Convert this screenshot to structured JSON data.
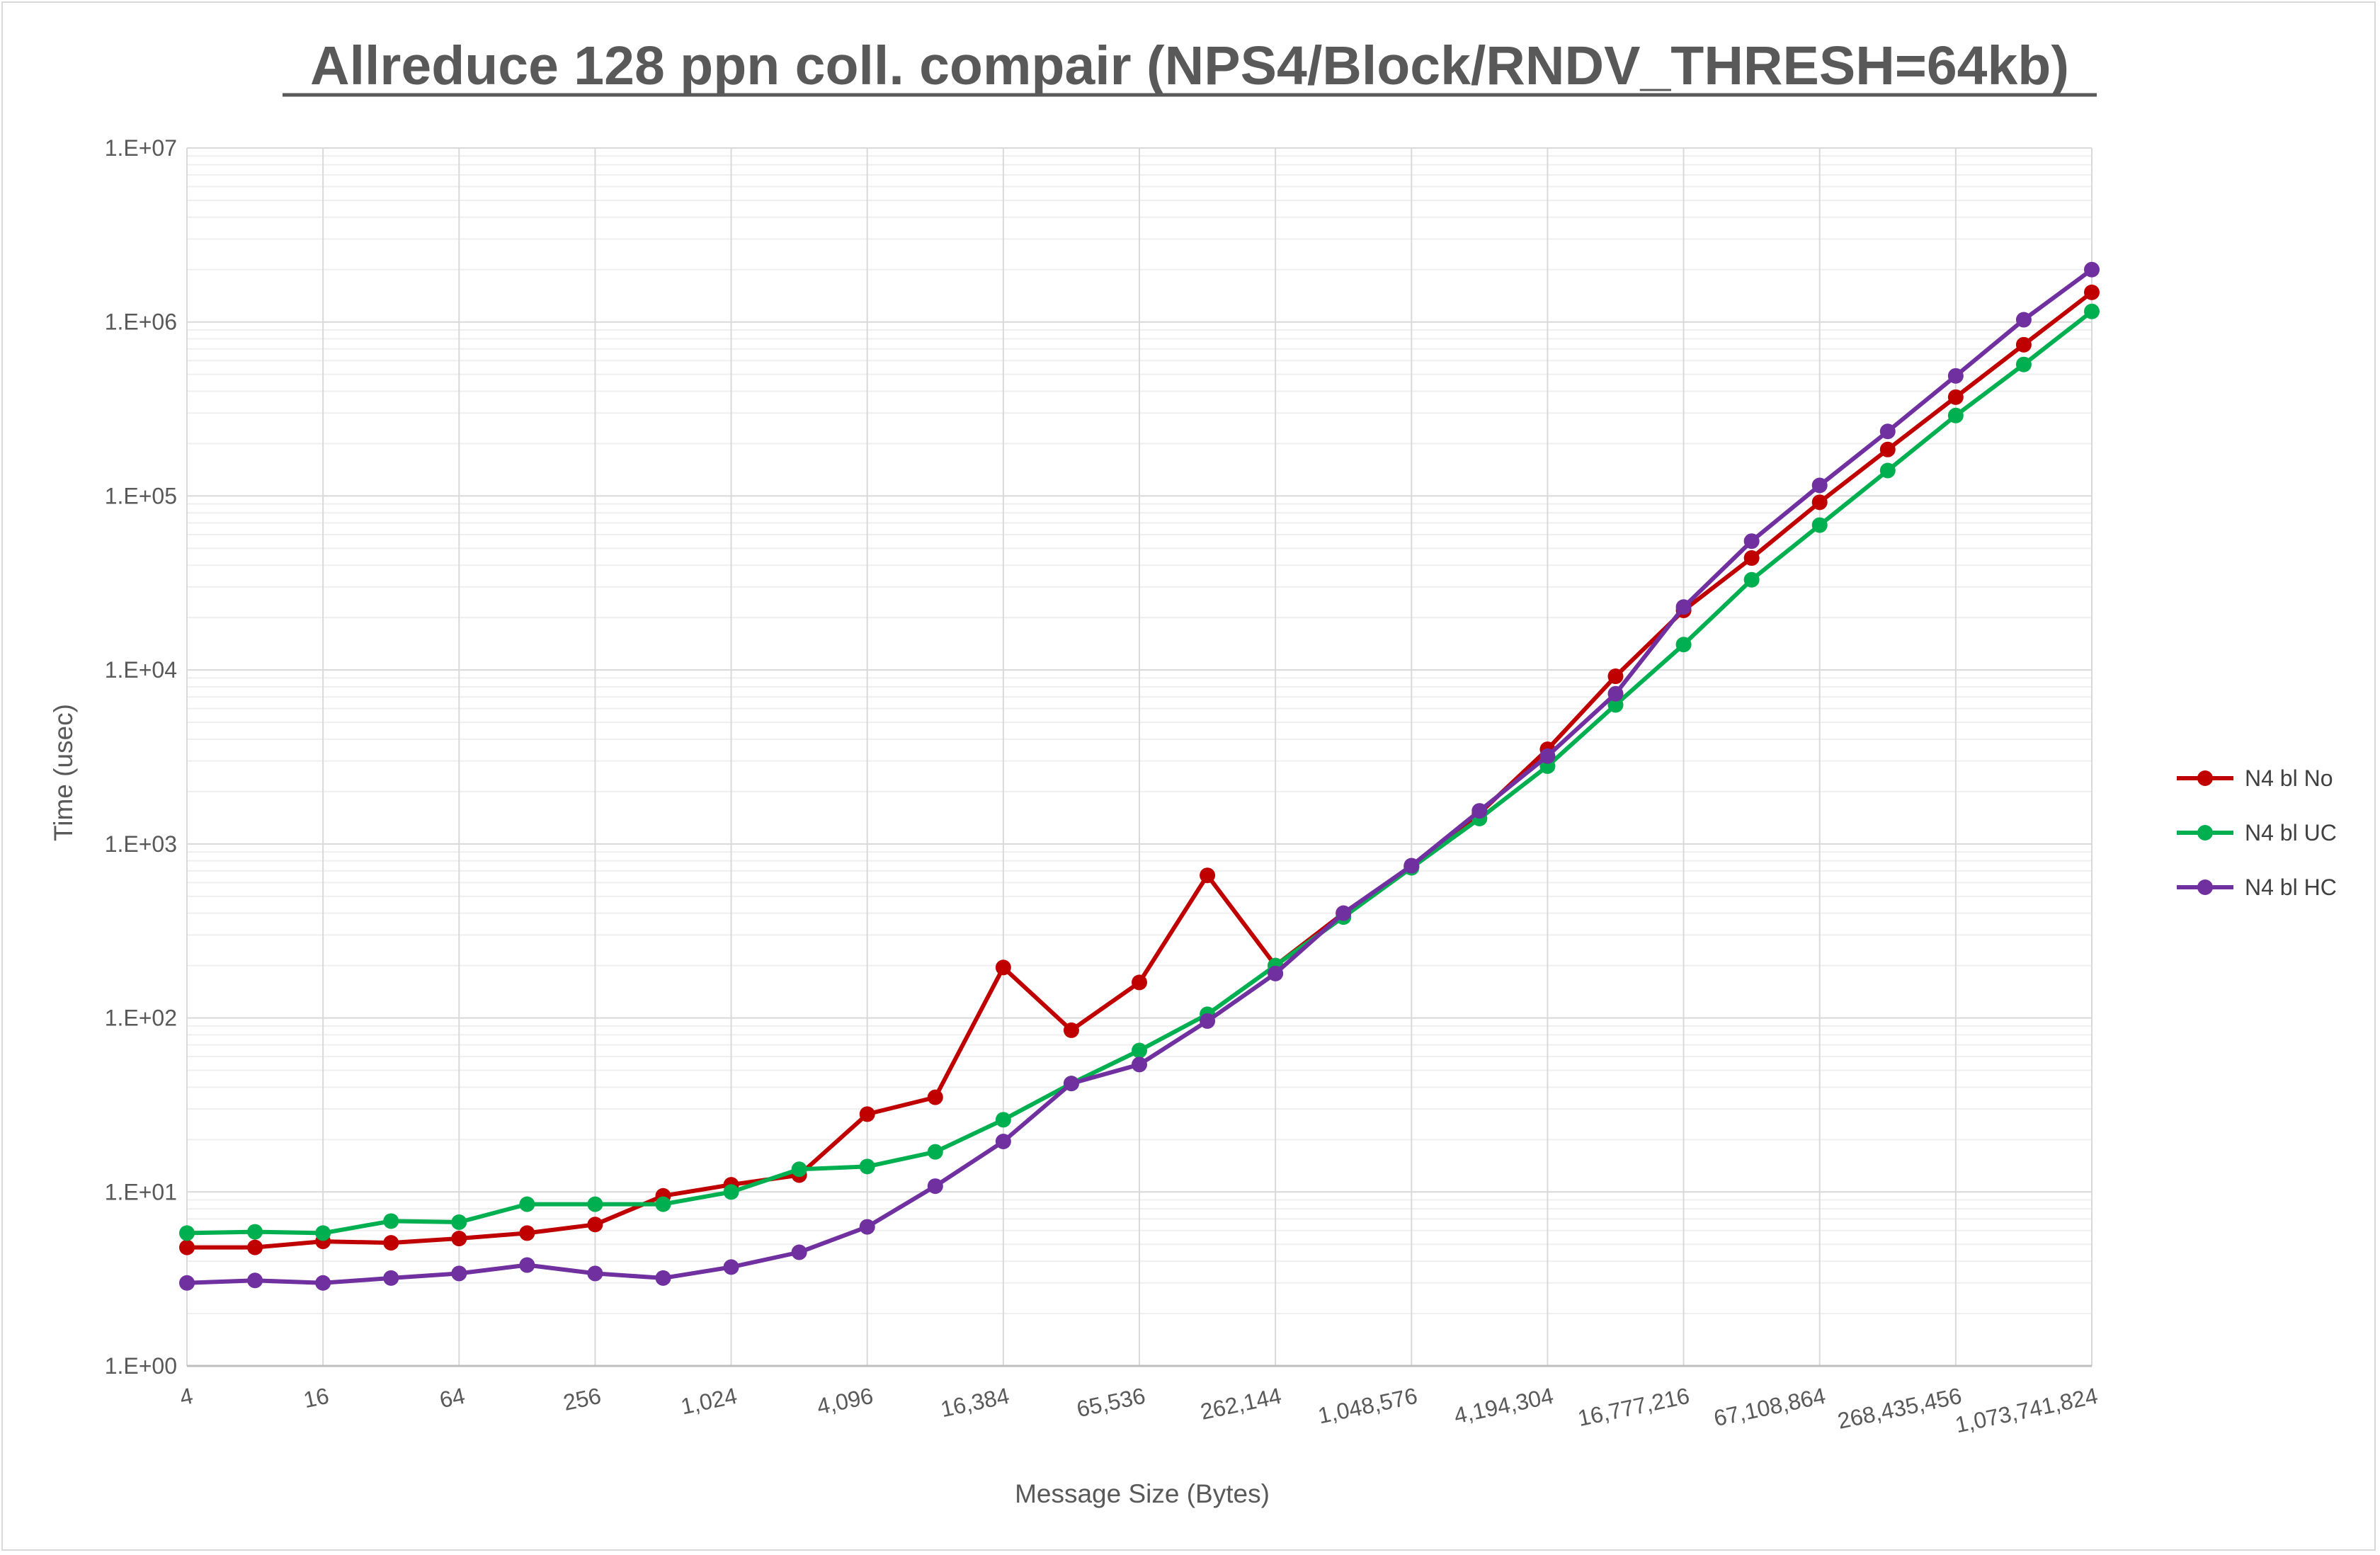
{
  "chart_data": {
    "type": "line",
    "title": "Allreduce 128 ppn coll. compair (NPS4/Block/RNDV_THRESH=64kb)",
    "xlabel": "Message Size (Bytes)",
    "ylabel": "Time (usec)",
    "y_scale": "log",
    "ylim": [
      1,
      10000000
    ],
    "y_ticks": [
      "1.E+00",
      "1.E+01",
      "1.E+02",
      "1.E+03",
      "1.E+04",
      "1.E+05",
      "1.E+06",
      "1.E+07"
    ],
    "x": [
      4,
      8,
      16,
      32,
      64,
      128,
      256,
      512,
      1024,
      2048,
      4096,
      8192,
      16384,
      32768,
      65536,
      131072,
      262144,
      524288,
      1048576,
      2097152,
      4194304,
      8388608,
      16777216,
      33554432,
      67108864,
      134217728,
      268435456,
      536870912,
      1073741824
    ],
    "x_tick_labels": [
      "4",
      "16",
      "64",
      "256",
      "1,024",
      "4,096",
      "16,384",
      "65,536",
      "262,144",
      "1,048,576",
      "4,194,304",
      "16,777,216",
      "67,108,864",
      "268,435,456",
      "1,073,741,824"
    ],
    "grid": true,
    "legend_position": "right",
    "series": [
      {
        "name": "N4 bl No",
        "color": "#c00000",
        "values": [
          4.8,
          4.8,
          5.2,
          5.1,
          5.4,
          5.8,
          6.5,
          9.5,
          11,
          12.5,
          28,
          35,
          195,
          85,
          160,
          660,
          200,
          400,
          740,
          1500,
          3500,
          9200,
          22000,
          44000,
          92000,
          185000,
          370000,
          740000,
          1480000
        ]
      },
      {
        "name": "N4 bl UC",
        "color": "#00b050",
        "values": [
          5.8,
          5.9,
          5.8,
          6.8,
          6.7,
          8.5,
          8.5,
          8.5,
          10,
          13.5,
          14,
          17,
          26,
          42,
          65,
          105,
          200,
          380,
          730,
          1400,
          2800,
          6300,
          14000,
          33000,
          68000,
          140000,
          290000,
          570000,
          1150000
        ]
      },
      {
        "name": "N4 bl HC",
        "color": "#7030a0",
        "values": [
          3.0,
          3.1,
          3.0,
          3.2,
          3.4,
          3.8,
          3.4,
          3.2,
          3.7,
          4.5,
          6.3,
          10.8,
          19.5,
          42,
          54,
          96,
          180,
          400,
          750,
          1550,
          3200,
          7300,
          23000,
          55000,
          115000,
          235000,
          490000,
          1030000,
          2000000
        ]
      }
    ]
  }
}
